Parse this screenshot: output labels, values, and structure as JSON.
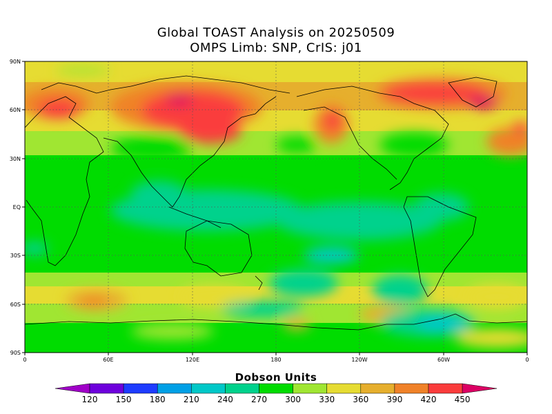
{
  "title": {
    "line1": "Global TOAST Analysis on 20250509",
    "line2": "OMPS Limb: SNP,  CrIS: j01"
  },
  "map": {
    "lat_ticks": [
      "90N",
      "60N",
      "30N",
      "EQ",
      "30S",
      "60S",
      "90S"
    ],
    "lon_ticks": [
      "0",
      "60E",
      "120E",
      "180",
      "120W",
      "60W",
      "0"
    ]
  },
  "colorbar": {
    "title": "Dobson Units",
    "ticks": [
      "120",
      "150",
      "180",
      "210",
      "240",
      "270",
      "300",
      "330",
      "360",
      "390",
      "420",
      "450"
    ],
    "colors": [
      "#a000c8",
      "#6e00dc",
      "#1e3cff",
      "#00a0e6",
      "#00c8c8",
      "#00d28c",
      "#00dc00",
      "#a0e632",
      "#e6dc32",
      "#e6af2d",
      "#f08228",
      "#fa3c3c",
      "#dc0064"
    ]
  }
}
